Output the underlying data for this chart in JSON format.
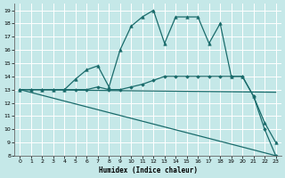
{
  "xlabel": "Humidex (Indice chaleur)",
  "xlim": [
    -0.5,
    23.5
  ],
  "ylim": [
    8,
    19.5
  ],
  "yticks": [
    8,
    9,
    10,
    11,
    12,
    13,
    14,
    15,
    16,
    17,
    18,
    19
  ],
  "xticks": [
    0,
    1,
    2,
    3,
    4,
    5,
    6,
    7,
    8,
    9,
    10,
    11,
    12,
    13,
    14,
    15,
    16,
    17,
    18,
    19,
    20,
    21,
    22,
    23
  ],
  "background_color": "#c5e8e8",
  "grid_color": "#ffffff",
  "line_color": "#1a6b6b",
  "lines": [
    {
      "x": [
        0,
        1,
        2,
        3,
        4,
        5,
        6,
        7,
        8,
        9,
        10,
        11,
        12,
        13,
        14,
        15,
        16,
        17,
        18,
        19,
        20,
        21,
        22,
        23
      ],
      "y": [
        13,
        13,
        13,
        13,
        13,
        13.8,
        14.5,
        14.8,
        13.2,
        16,
        17.8,
        18.5,
        19,
        16.5,
        18.5,
        18.5,
        18.5,
        16.5,
        18,
        14,
        14,
        12.5,
        10.5,
        9
      ],
      "marker": "^",
      "markersize": 2.5,
      "lw": 0.9
    },
    {
      "x": [
        0,
        1,
        2,
        3,
        4,
        5,
        6,
        7,
        8,
        9,
        10,
        11,
        12,
        13,
        14,
        15,
        16,
        17,
        18,
        19,
        20,
        21,
        22,
        23
      ],
      "y": [
        13,
        13,
        13,
        13,
        13,
        13,
        13,
        13.2,
        13,
        13,
        13.2,
        13.4,
        13.7,
        14.0,
        14.0,
        14.0,
        14.0,
        14.0,
        14.0,
        14.0,
        14.0,
        12.5,
        10.0,
        8.0
      ],
      "marker": "D",
      "markersize": 1.8,
      "lw": 0.9
    },
    {
      "x": [
        0,
        23
      ],
      "y": [
        13,
        12.8
      ],
      "marker": null,
      "markersize": 0,
      "lw": 0.9
    },
    {
      "x": [
        0,
        23
      ],
      "y": [
        13,
        8.0
      ],
      "marker": null,
      "markersize": 0,
      "lw": 0.9
    }
  ]
}
